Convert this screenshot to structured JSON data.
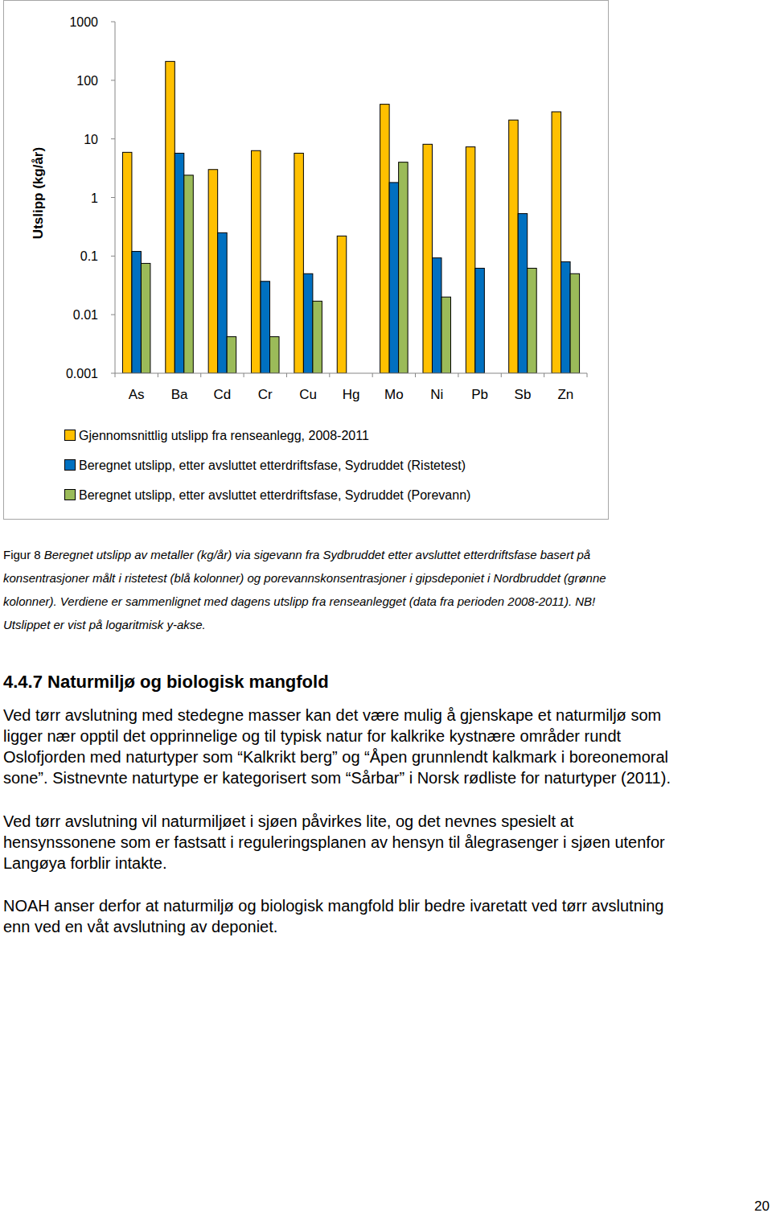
{
  "chart_data": {
    "type": "bar",
    "y_label": "Utslipp (kg/år)",
    "categories": [
      "As",
      "Ba",
      "Cd",
      "Cr",
      "Cu",
      "Hg",
      "Mo",
      "Ni",
      "Pb",
      "Sb",
      "Zn"
    ],
    "series": [
      {
        "name": "Gjennomsnittlig  utslipp fra renseanlegg, 2008-2011",
        "color": "#FFC000",
        "values": [
          5.9,
          210,
          3.0,
          6.3,
          5.7,
          0.22,
          39,
          8.1,
          7.3,
          21,
          29
        ]
      },
      {
        "name": "Beregnet utslipp, etter avsluttet etterdriftsfase, Sydruddet (Ristetest)",
        "color": "#0070C0",
        "values": [
          0.12,
          5.7,
          0.25,
          0.037,
          0.05,
          null,
          1.8,
          0.093,
          0.062,
          0.53,
          0.08
        ]
      },
      {
        "name": "Beregnet utslipp, etter avsluttet etterdriftsfase, Sydruddet (Porevann)",
        "color": "#9BBB59",
        "values": [
          0.075,
          2.4,
          0.0042,
          0.0042,
          0.017,
          null,
          4.0,
          0.02,
          null,
          0.062,
          0.05
        ]
      }
    ],
    "ylim": [
      0.001,
      1000
    ],
    "yticks": [
      0.001,
      0.01,
      0.1,
      1,
      10,
      100,
      1000
    ],
    "log": "y",
    "legend": "bottom"
  },
  "caption": {
    "label": "Figur 8",
    "lines": [
      "Beregnet utslipp av metaller (kg/år) via sigevann fra Sydbruddet etter avsluttet etterdriftsfase basert på",
      "konsentrasjoner målt i ristetest (blå kolonner) og porevannskonsentrasjoner i gipsdeponiet i Nordbruddet (grønne",
      "kolonner). Verdiene er sammenlignet med dagens utslipp fra renseanlegget (data fra perioden 2008-2011). NB!",
      "Utslippet er vist på logaritmisk y-akse."
    ]
  },
  "section": {
    "heading": "4.4.7 Naturmiljø og biologisk mangfold",
    "paragraphs": [
      [
        "Ved tørr avslutning med stedegne masser kan det være mulig å gjenskape et naturmiljø som",
        "ligger nær opptil det opprinnelige og til typisk natur for kalkrike kystnære områder rundt",
        "Oslofjorden med naturtyper som “Kalkrikt berg” og “Åpen grunnlendt kalkmark i boreonemoral",
        "sone”. Sistnevnte naturtype er kategorisert som “Sårbar” i Norsk rødliste for naturtyper (2011)."
      ],
      [
        "Ved tørr avslutning vil naturmiljøet i sjøen påvirkes lite, og det nevnes spesielt at",
        "hensynssonene som er fastsatt i reguleringsplanen av hensyn til ålegrasenger i sjøen utenfor",
        "Langøya forblir intakte."
      ],
      [
        "NOAH anser derfor at naturmiljø og biologisk mangfold blir bedre ivaretatt ved tørr avslutning",
        "enn ved en våt avslutning av deponiet."
      ]
    ]
  },
  "page_number": "20"
}
